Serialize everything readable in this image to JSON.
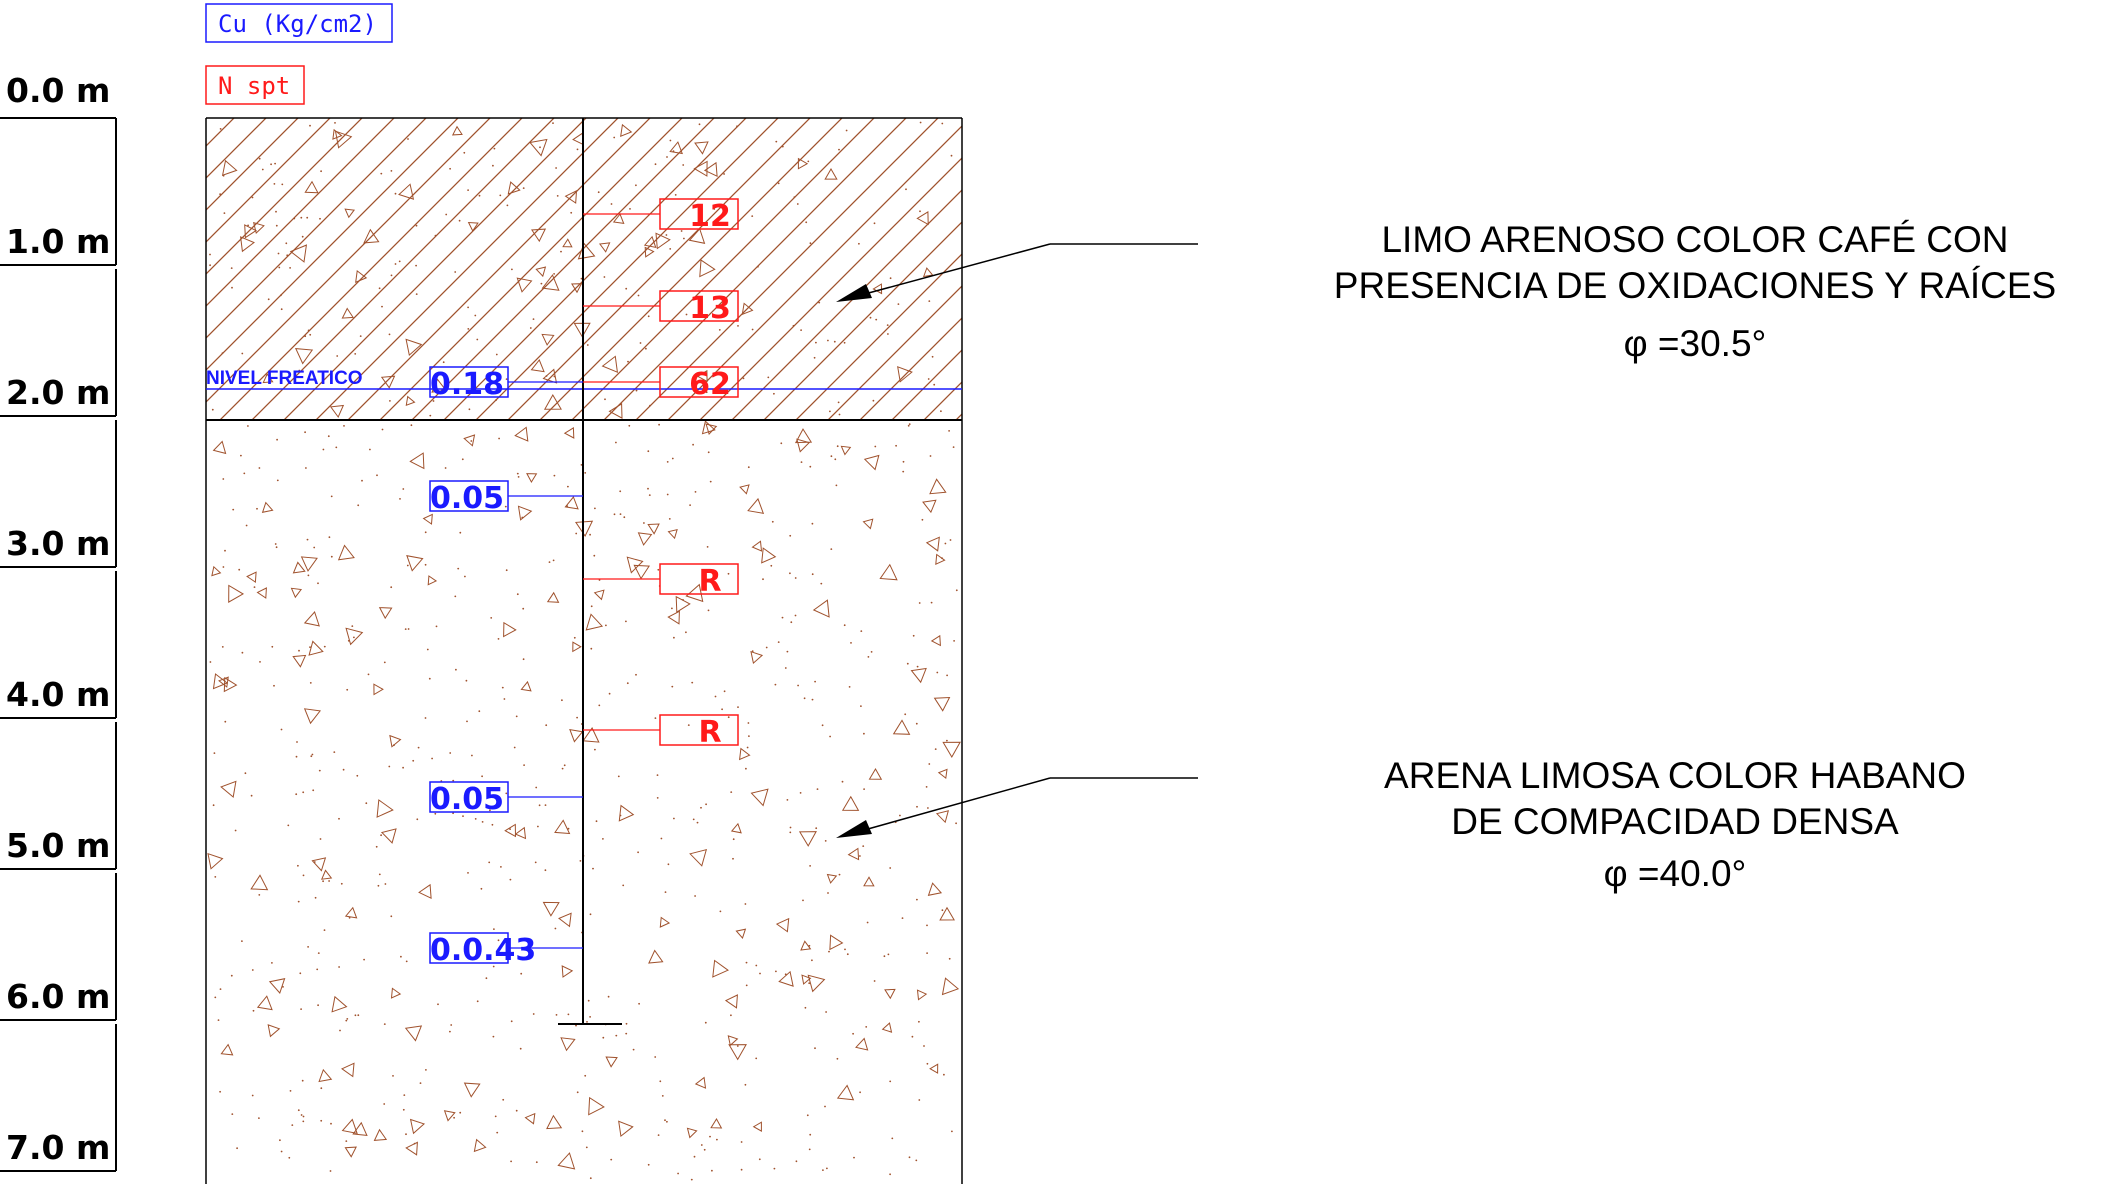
{
  "legend": {
    "cu_label": "Cu (Kg/cm2)",
    "nspt_label": "N spt",
    "cu_color": "#1a1aff",
    "nspt_color": "#ff1a1a"
  },
  "depth_scale": [
    "0.0 m",
    "1.0 m",
    "2.0 m",
    "3.0 m",
    "4.0 m",
    "5.0 m",
    "6.0 m",
    "7.0 m"
  ],
  "water_table": {
    "label": "NIVEL FREATICO",
    "depth_m": 1.8
  },
  "borehole_bottom_m": 6.0,
  "nspt_values": [
    {
      "depth_m": 0.65,
      "value": "12"
    },
    {
      "depth_m": 1.25,
      "value": "13"
    },
    {
      "depth_m": 1.75,
      "value": "62"
    },
    {
      "depth_m": 3.0,
      "value": "R"
    },
    {
      "depth_m": 4.0,
      "value": "R"
    }
  ],
  "cu_values": [
    {
      "depth_m": 1.75,
      "value": "0.18"
    },
    {
      "depth_m": 2.5,
      "value": "0.05"
    },
    {
      "depth_m": 4.5,
      "value": "0.05"
    },
    {
      "depth_m": 5.5,
      "value": "0.0.43"
    }
  ],
  "layers": [
    {
      "top_m": 0.0,
      "bottom_m": 2.0,
      "pattern": "hatched-silt",
      "description": [
        "LIMO ARENOSO COLOR CAFÉ CON",
        "PRESENCIA DE OXIDACIONES Y RAÍCES"
      ],
      "phi": "φ =30.5°"
    },
    {
      "top_m": 2.0,
      "bottom_m": 7.0,
      "pattern": "sand-dots",
      "description": [
        "ARENA LIMOSA COLOR HABANO",
        "DE COMPACIDAD DENSA"
      ],
      "phi": "φ =40.0°"
    }
  ],
  "colors": {
    "soil_pattern": "#a0522d",
    "line": "#000000"
  }
}
